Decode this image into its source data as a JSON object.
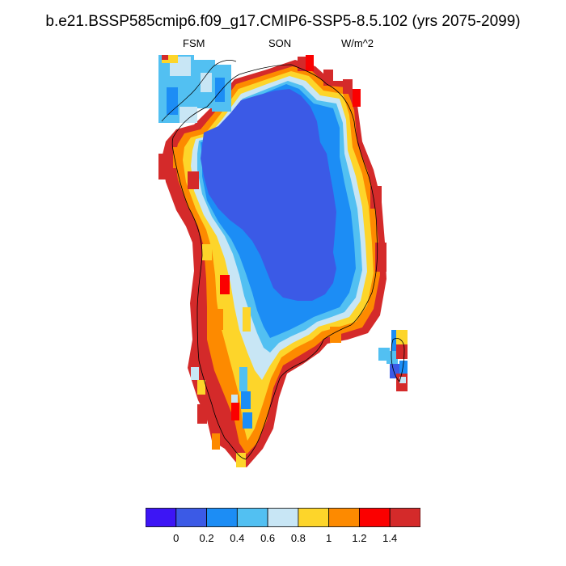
{
  "title": "b.e21.BSSP585cmip6.f09_g17.CMIP6-SSP5-8.5.102 (yrs 2075-2099)",
  "subtitle_left": "FSM",
  "subtitle_center": "SON",
  "subtitle_right": "W/m^2",
  "colorbar": {
    "colors": [
      "#3d15f5",
      "#3b5ae6",
      "#1c8df5",
      "#52c0f2",
      "#c8e6f5",
      "#fdd52a",
      "#fd8a00",
      "#fb0000",
      "#d42a2a"
    ],
    "tick_labels": [
      "0",
      "0.2",
      "0.4",
      "0.6",
      "0.8",
      "1",
      "1.2",
      "1.4"
    ]
  },
  "map": {
    "region": "Greenland",
    "colors": {
      "interior": "#3b5ae6",
      "ring_0.4": "#1c8df5",
      "ring_0.6": "#52c0f2",
      "ring_0.8": "#c8e6f5",
      "coast_1.0": "#fdd52a",
      "coast_1.2": "#fd8a00",
      "coast_1.4": "#fb0000",
      "coast_max": "#d42a2a",
      "coastline": "#000000"
    }
  }
}
